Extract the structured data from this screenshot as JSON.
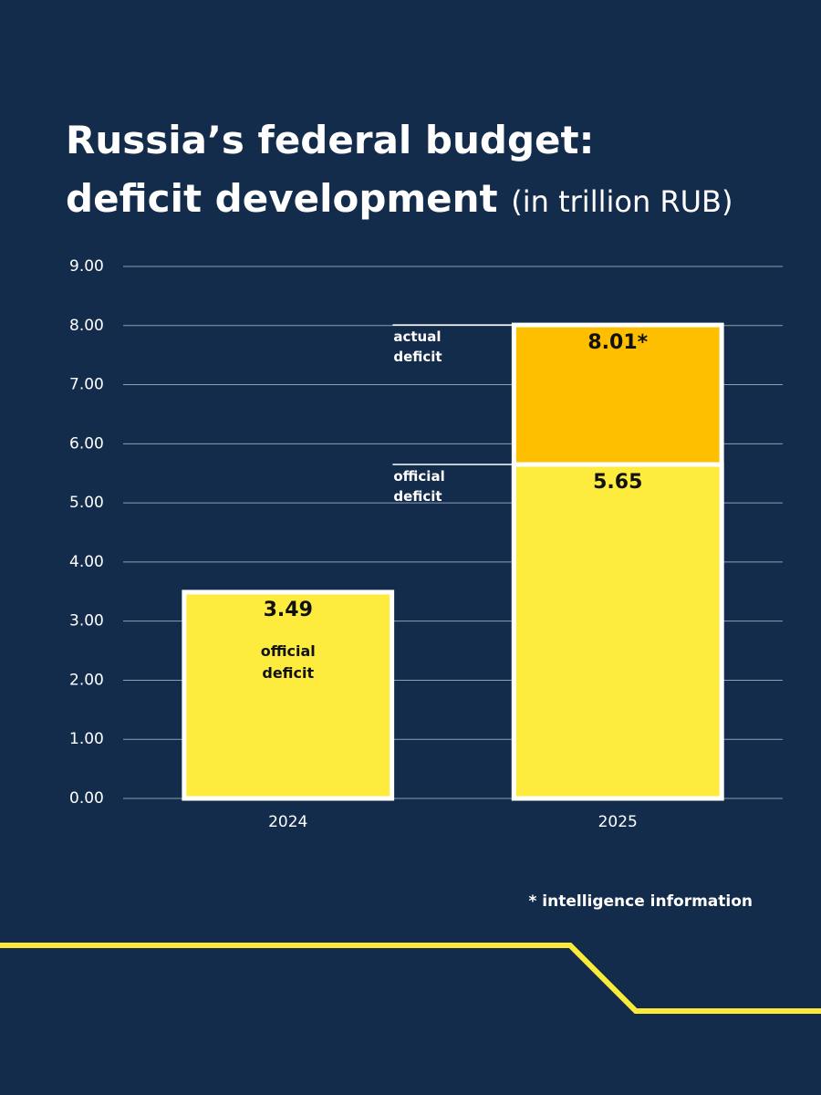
{
  "chart_data": {
    "type": "bar",
    "barmode": "overlay",
    "title": "Russia’s federal budget:\ndeficit development",
    "subtitle": "(in trillion RUB)",
    "categories": [
      "2024",
      "2025"
    ],
    "series": [
      {
        "name": "official deficit",
        "color": "#fdeb3d",
        "values": [
          3.49,
          5.65
        ]
      },
      {
        "name": "actual deficit",
        "color": "#fdbf00",
        "values": [
          null,
          8.01
        ],
        "value_labels": [
          null,
          "8.01*"
        ]
      }
    ],
    "ylim": [
      0,
      9
    ],
    "yticks": [
      {
        "value": 0,
        "label": "0.00"
      },
      {
        "value": 1,
        "label": "1.00"
      },
      {
        "value": 2,
        "label": "2.00"
      },
      {
        "value": 3,
        "label": "3.00"
      },
      {
        "value": 4,
        "label": "4.00"
      },
      {
        "value": 5,
        "label": "5.00"
      },
      {
        "value": 6,
        "label": "6.00"
      },
      {
        "value": 7,
        "label": "7.00"
      },
      {
        "value": 8,
        "label": "8.00"
      },
      {
        "value": 9,
        "label": "9.00"
      }
    ],
    "grid": true,
    "footnote": "* intelligence information"
  }
}
